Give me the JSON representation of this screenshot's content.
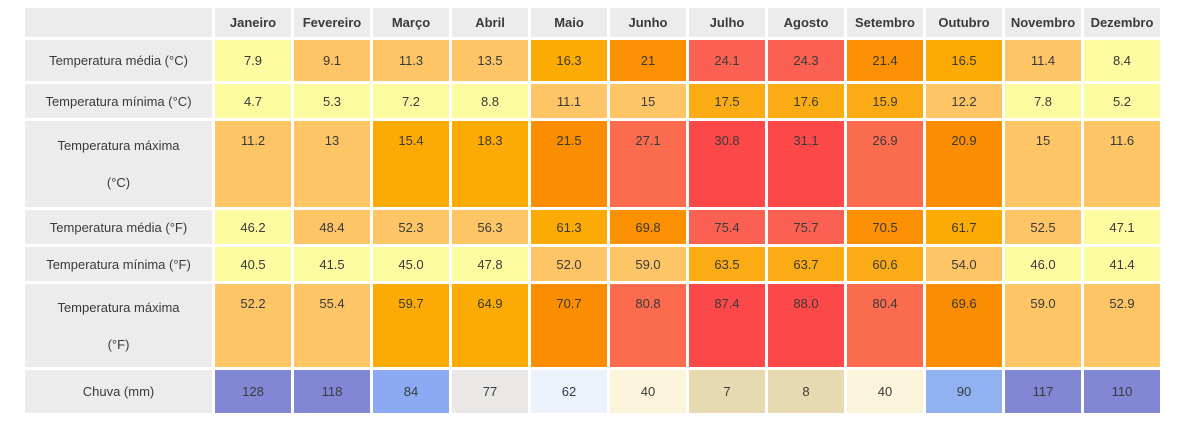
{
  "chart_data": {
    "type": "table",
    "columns": [
      "Janeiro",
      "Fevereiro",
      "Março",
      "Abril",
      "Maio",
      "Junho",
      "Julho",
      "Agosto",
      "Setembro",
      "Outubro",
      "Novembro",
      "Dezembro"
    ],
    "rows": [
      {
        "label": "Temperatura média (°C)",
        "values": [
          "7.9",
          "9.1",
          "11.3",
          "13.5",
          "16.3",
          "21",
          "24.1",
          "24.3",
          "21.4",
          "16.5",
          "11.4",
          "8.4"
        ],
        "colors": [
          "#fdfba0",
          "#fdc566",
          "#fdc566",
          "#fdc566",
          "#fcaa04",
          "#fb9003",
          "#fa6153",
          "#fa6153",
          "#fb9003",
          "#fcaa04",
          "#fdc566",
          "#fdfba0"
        ]
      },
      {
        "label": "Temperatura mínima (°C)",
        "values": [
          "4.7",
          "5.3",
          "7.2",
          "8.8",
          "11.1",
          "15",
          "17.5",
          "17.6",
          "15.9",
          "12.2",
          "7.8",
          "5.2"
        ],
        "colors": [
          "#fdfba0",
          "#fdfba0",
          "#fdfba0",
          "#fdfba0",
          "#fdc566",
          "#fdc566",
          "#fbac15",
          "#fbac15",
          "#fbac15",
          "#fdc566",
          "#fdfba0",
          "#fdfba0"
        ]
      },
      {
        "label_line1": "Temperatura máxima",
        "label_line2": "(°C)",
        "values": [
          "11.2",
          "13",
          "15.4",
          "18.3",
          "21.5",
          "27.1",
          "30.8",
          "31.1",
          "26.9",
          "20.9",
          "15",
          "11.6"
        ],
        "colors": [
          "#fdc566",
          "#fdc566",
          "#fcaa04",
          "#fcaa04",
          "#fb8d01",
          "#fb6b4e",
          "#fc4848",
          "#fc4848",
          "#fb6b4e",
          "#fb8d01",
          "#fdc566",
          "#fdc566"
        ]
      },
      {
        "label": "Temperatura média (°F)",
        "values": [
          "46.2",
          "48.4",
          "52.3",
          "56.3",
          "61.3",
          "69.8",
          "75.4",
          "75.7",
          "70.5",
          "61.7",
          "52.5",
          "47.1"
        ],
        "colors": [
          "#fdfba0",
          "#fdc566",
          "#fdc566",
          "#fdc566",
          "#fcaa04",
          "#fb9003",
          "#fa6153",
          "#fa6153",
          "#fb9003",
          "#fcaa04",
          "#fdc566",
          "#fdfba0"
        ]
      },
      {
        "label": "Temperatura mínima (°F)",
        "values": [
          "40.5",
          "41.5",
          "45.0",
          "47.8",
          "52.0",
          "59.0",
          "63.5",
          "63.7",
          "60.6",
          "54.0",
          "46.0",
          "41.4"
        ],
        "colors": [
          "#fdfba0",
          "#fdfba0",
          "#fdfba0",
          "#fdfba0",
          "#fdc566",
          "#fdc566",
          "#fbac15",
          "#fbac15",
          "#fbac15",
          "#fdc566",
          "#fdfba0",
          "#fdfba0"
        ]
      },
      {
        "label_line1": "Temperatura máxima",
        "label_line2": "(°F)",
        "values": [
          "52.2",
          "55.4",
          "59.7",
          "64.9",
          "70.7",
          "80.8",
          "87.4",
          "88.0",
          "80.4",
          "69.6",
          "59.0",
          "52.9"
        ],
        "colors": [
          "#fdc566",
          "#fdc566",
          "#fcaa04",
          "#fcaa04",
          "#fb8d01",
          "#fb6b4e",
          "#fc4848",
          "#fc4848",
          "#fb6b4e",
          "#fb8d01",
          "#fdc566",
          "#fdc566"
        ]
      },
      {
        "label": "Chuva (mm)",
        "values": [
          "128",
          "118",
          "84",
          "77",
          "62",
          "40",
          "7",
          "8",
          "40",
          "90",
          "117",
          "110"
        ],
        "colors": [
          "#8287d5",
          "#8287d5",
          "#8caaf4",
          "#e9e8e6",
          "#ecf2fb",
          "#fbf4da",
          "#e7dab0",
          "#e7dab0",
          "#fbf4da",
          "#90b2f1",
          "#8287d5",
          "#8287d5"
        ]
      }
    ],
    "layout": {
      "header_background": "#ececec",
      "label_column_background": "#ececec",
      "text_color": "#3a3a3a",
      "page_background": "#ffffff"
    }
  }
}
